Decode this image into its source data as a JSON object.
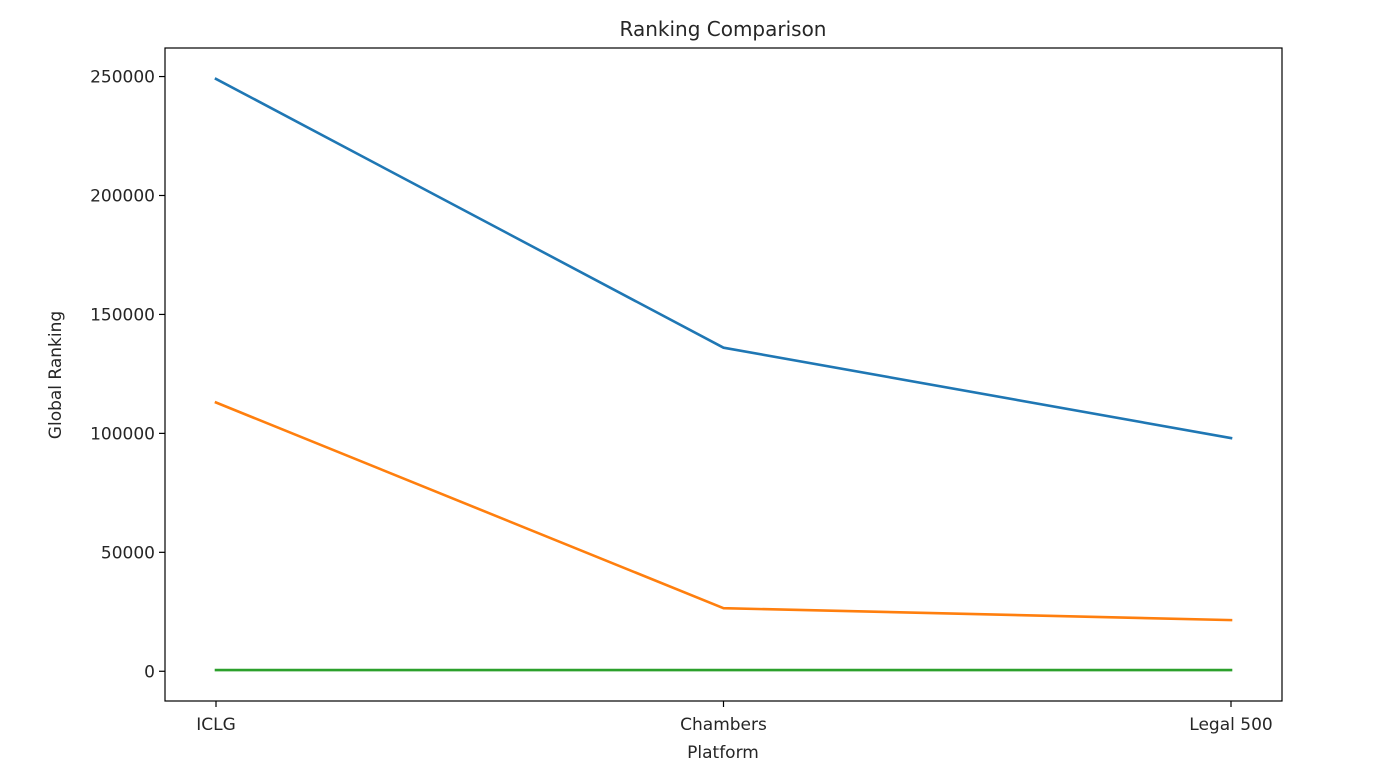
{
  "chart_data": {
    "type": "line",
    "title": "Ranking Comparison",
    "xlabel": "Platform",
    "ylabel": "Global Ranking",
    "categories": [
      "ICLG",
      "Chambers",
      "Legal 500"
    ],
    "series": [
      {
        "values": [
          249000,
          136000,
          98000
        ],
        "color": "#1f77b4"
      },
      {
        "values": [
          113000,
          26500,
          21500
        ],
        "color": "#ff7f0e"
      },
      {
        "values": [
          500,
          500,
          500
        ],
        "color": "#2ca02c"
      }
    ],
    "ylim": [
      -12500,
      262000
    ],
    "yticks": [
      0,
      50000,
      100000,
      150000,
      200000,
      250000
    ],
    "ytick_labels": [
      "0",
      "50000",
      "100000",
      "150000",
      "200000",
      "250000"
    ],
    "grid": false,
    "legend": "none"
  }
}
